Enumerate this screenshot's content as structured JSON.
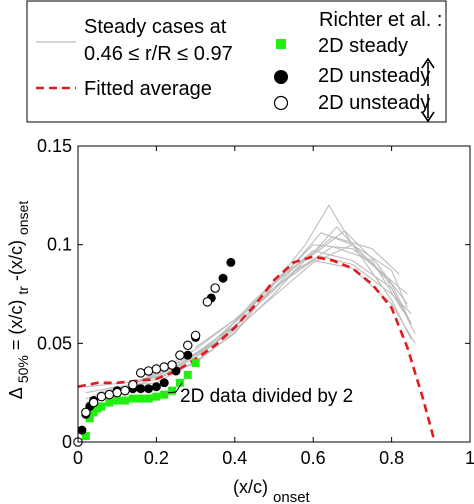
{
  "chart_data": {
    "type": "line",
    "xlabel": "(x/c)",
    "xlabel_sub": "onset",
    "ylabel": {
      "delta_sub": "50%",
      "mid": " = (x/c)",
      "sub1": "tr",
      "mid2": "-(x/c)",
      "sub2": "onset"
    },
    "xlim": [
      0,
      1
    ],
    "ylim": [
      0,
      0.15
    ],
    "x_ticks": [
      0,
      0.2,
      0.4,
      0.6,
      0.8,
      1
    ],
    "x_tick_labels": [
      "0",
      "0.2",
      "0.4",
      "0.6",
      "0.8",
      "1"
    ],
    "y_ticks": [
      0,
      0.05,
      0.1,
      0.15
    ],
    "y_tick_labels": [
      "0",
      "0.05",
      "0.1",
      "0.15"
    ],
    "grid": false,
    "legend_left": {
      "steady_line1": "Steady cases at",
      "steady_line2": "0.46 ≤ r/R ≤ 0.97",
      "fitted": "Fitted average"
    },
    "legend_right": {
      "title": "Richter et al. :",
      "steady2d": "2D steady",
      "unsteady_up": "2D unsteady",
      "unsteady_down": "2D unsteady"
    },
    "annotation": "2D data divided by 2",
    "annotation_target": [
      0.25,
      0.027
    ],
    "colors": {
      "steady_cases": "#bdbdbd",
      "fitted": "#e31a1c",
      "steady2d": "#22ee11",
      "unsteady_up": "#000000",
      "unsteady_down": "#ffffff"
    },
    "series": [
      {
        "name": "2D steady",
        "marker": "square",
        "x": [
          0.02,
          0.03,
          0.04,
          0.05,
          0.06,
          0.08,
          0.1,
          0.12,
          0.14,
          0.16,
          0.18,
          0.2,
          0.22,
          0.24,
          0.26,
          0.28,
          0.3
        ],
        "y": [
          0.003,
          0.012,
          0.015,
          0.017,
          0.018,
          0.02,
          0.021,
          0.021,
          0.022,
          0.022,
          0.022,
          0.023,
          0.024,
          0.026,
          0.03,
          0.034,
          0.04
        ]
      },
      {
        "name": "2D unsteady (up)",
        "marker": "filled-circle",
        "x": [
          0.01,
          0.02,
          0.03,
          0.04,
          0.06,
          0.08,
          0.1,
          0.12,
          0.14,
          0.16,
          0.18,
          0.2,
          0.22,
          0.25,
          0.28,
          0.3,
          0.34,
          0.37,
          0.39
        ],
        "y": [
          0.006,
          0.014,
          0.018,
          0.021,
          0.023,
          0.024,
          0.026,
          0.026,
          0.027,
          0.027,
          0.027,
          0.028,
          0.03,
          0.036,
          0.044,
          0.053,
          0.073,
          0.083,
          0.091
        ]
      },
      {
        "name": "2D unsteady (down)",
        "marker": "open-circle",
        "x": [
          0.0,
          0.02,
          0.04,
          0.06,
          0.08,
          0.1,
          0.12,
          0.14,
          0.16,
          0.18,
          0.2,
          0.22,
          0.24,
          0.26,
          0.28,
          0.3,
          0.33,
          0.35
        ],
        "y": [
          0.0,
          0.015,
          0.02,
          0.023,
          0.024,
          0.025,
          0.026,
          0.029,
          0.035,
          0.036,
          0.037,
          0.038,
          0.039,
          0.044,
          0.049,
          0.054,
          0.071,
          0.078
        ]
      },
      {
        "name": "Fitted average",
        "style": "dashed",
        "x": [
          0.0,
          0.05,
          0.1,
          0.15,
          0.2,
          0.25,
          0.3,
          0.35,
          0.4,
          0.45,
          0.5,
          0.55,
          0.6,
          0.65,
          0.7,
          0.75,
          0.8,
          0.84,
          0.88,
          0.91
        ],
        "y": [
          0.028,
          0.03,
          0.03,
          0.031,
          0.032,
          0.036,
          0.042,
          0.049,
          0.058,
          0.069,
          0.082,
          0.091,
          0.094,
          0.092,
          0.088,
          0.08,
          0.068,
          0.048,
          0.022,
          0.0
        ]
      }
    ],
    "steady_cases": [
      {
        "x": [
          0.02,
          0.1,
          0.2,
          0.3,
          0.4,
          0.5,
          0.6,
          0.7,
          0.8,
          0.86
        ],
        "y": [
          0.022,
          0.027,
          0.033,
          0.044,
          0.058,
          0.078,
          0.092,
          0.088,
          0.07,
          0.05
        ]
      },
      {
        "x": [
          0.02,
          0.1,
          0.2,
          0.3,
          0.4,
          0.5,
          0.58,
          0.64,
          0.7,
          0.8,
          0.85
        ],
        "y": [
          0.025,
          0.028,
          0.03,
          0.041,
          0.055,
          0.08,
          0.1,
          0.12,
          0.1,
          0.072,
          0.052
        ]
      },
      {
        "x": [
          0.02,
          0.1,
          0.2,
          0.3,
          0.4,
          0.5,
          0.6,
          0.7,
          0.8,
          0.86
        ],
        "y": [
          0.02,
          0.026,
          0.035,
          0.047,
          0.062,
          0.08,
          0.097,
          0.092,
          0.078,
          0.055
        ]
      },
      {
        "x": [
          0.05,
          0.15,
          0.25,
          0.35,
          0.45,
          0.55,
          0.62,
          0.7,
          0.78,
          0.85
        ],
        "y": [
          0.025,
          0.03,
          0.04,
          0.05,
          0.072,
          0.09,
          0.106,
          0.1,
          0.085,
          0.06
        ]
      },
      {
        "x": [
          0.1,
          0.2,
          0.3,
          0.4,
          0.5,
          0.6,
          0.66,
          0.72,
          0.8,
          0.85
        ],
        "y": [
          0.027,
          0.034,
          0.045,
          0.059,
          0.077,
          0.096,
          0.109,
          0.096,
          0.08,
          0.06
        ]
      },
      {
        "x": [
          0.02,
          0.12,
          0.22,
          0.32,
          0.42,
          0.52,
          0.6,
          0.68,
          0.76,
          0.84
        ],
        "y": [
          0.028,
          0.03,
          0.034,
          0.047,
          0.064,
          0.085,
          0.095,
          0.107,
          0.091,
          0.07
        ]
      },
      {
        "x": [
          0.1,
          0.2,
          0.3,
          0.4,
          0.5,
          0.56,
          0.62,
          0.7,
          0.8,
          0.85
        ],
        "y": [
          0.026,
          0.032,
          0.04,
          0.056,
          0.075,
          0.088,
          0.094,
          0.09,
          0.075,
          0.065
        ]
      },
      {
        "x": [
          0.3,
          0.4,
          0.5,
          0.6,
          0.7,
          0.78,
          0.84
        ],
        "y": [
          0.048,
          0.062,
          0.08,
          0.1,
          0.098,
          0.085,
          0.075
        ]
      },
      {
        "x": [
          0.15,
          0.25,
          0.35,
          0.45,
          0.55,
          0.65,
          0.75,
          0.82
        ],
        "y": [
          0.03,
          0.038,
          0.05,
          0.068,
          0.088,
          0.104,
          0.098,
          0.085
        ]
      },
      {
        "x": [
          0.2,
          0.3,
          0.4,
          0.5,
          0.6,
          0.7,
          0.8,
          0.84
        ],
        "y": [
          0.032,
          0.043,
          0.057,
          0.074,
          0.091,
          0.1,
          0.087,
          0.068
        ]
      },
      {
        "x": [
          0.25,
          0.35,
          0.45,
          0.55,
          0.65,
          0.75,
          0.83
        ],
        "y": [
          0.038,
          0.052,
          0.07,
          0.086,
          0.099,
          0.092,
          0.066
        ]
      }
    ]
  }
}
